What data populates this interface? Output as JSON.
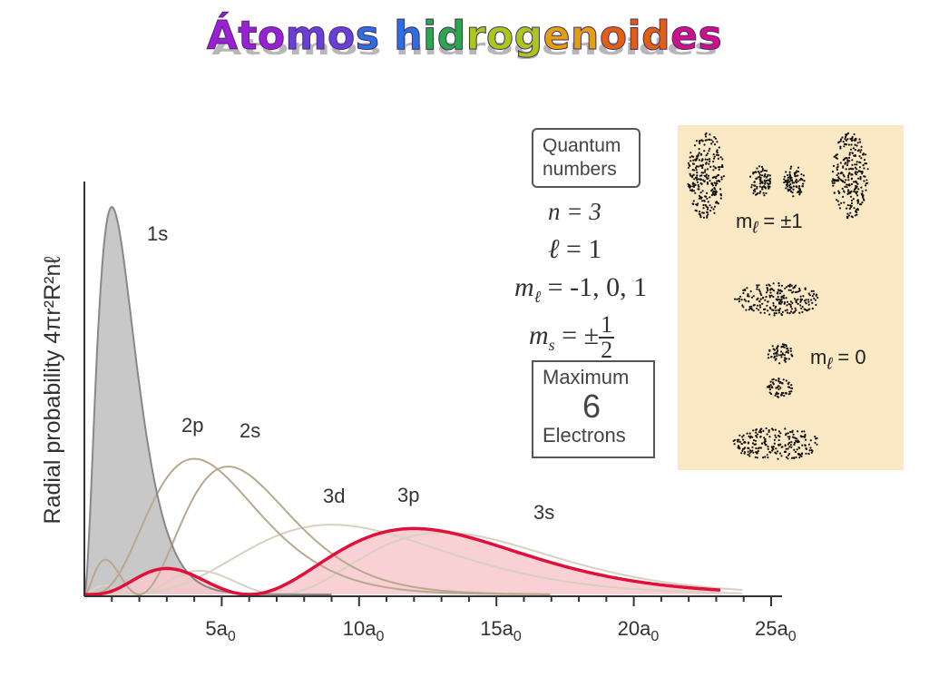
{
  "slide": {
    "title": "Átomos hidrogenoides"
  },
  "colors": {
    "title_gradient": [
      "#9b1fd6",
      "#6a3fd8",
      "#2e6fe0",
      "#2aa84a",
      "#a8c81a",
      "#e0a010",
      "#e06010",
      "#d0108a"
    ],
    "curve_red": "#e0103a",
    "fill_red": "#f8c8cc",
    "fill_gray": "#c8c8c8",
    "curve_gray": "#888888",
    "curve_tan": "#b8a890",
    "curve_light": "#d8d0c0",
    "panel_bg": "#fbe8c4"
  },
  "chart_data": {
    "type": "line",
    "title": "",
    "xlabel": "",
    "ylabel": "Radial probability 4πr²R²nℓ",
    "x_ticks": [
      "5a0",
      "10a0",
      "15a0",
      "20a0",
      "25a0"
    ],
    "x_tick_values": [
      5,
      10,
      15,
      20,
      25
    ],
    "xlim": [
      0,
      25
    ],
    "ylim": [
      0,
      1.0
    ],
    "series": [
      {
        "name": "1s",
        "label": "1s",
        "style": "gray-filled",
        "peak": 1.0,
        "peak_at": 1.0
      },
      {
        "name": "2p",
        "label": "2p",
        "style": "tan",
        "peak": 0.35,
        "peak_at": 4.0
      },
      {
        "name": "2s",
        "label": "2s",
        "style": "tan",
        "peak": 0.33,
        "peak_at": 5.2
      },
      {
        "name": "3d",
        "label": "3d",
        "style": "light",
        "peak": 0.18,
        "peak_at": 9.0
      },
      {
        "name": "3p",
        "label": "3p",
        "style": "red-filled",
        "peak": 0.17,
        "peak_at": 12.0
      },
      {
        "name": "3s",
        "label": "3s",
        "style": "light",
        "peak": 0.16,
        "peak_at": 13.0
      }
    ]
  },
  "quantum": {
    "box_line1": "Quantum",
    "box_line2": "numbers",
    "n_sym": "n",
    "n_val": "= 3",
    "l_sym": "ℓ",
    "l_val": "= 1",
    "ml_sym": "m",
    "ml_sub": "ℓ",
    "ml_val": "= -1, 0, 1",
    "ms_sym": "m",
    "ms_sub": "s",
    "ms_val": "= ±",
    "ms_num": "1",
    "ms_den": "2",
    "max_top": "Maximum",
    "max_num": "6",
    "max_bot": "Electrons"
  },
  "orbitals": {
    "label_pm1_sym": "m",
    "label_pm1_sub": "ℓ",
    "label_pm1_val": " = ±1",
    "label_0_sym": "m",
    "label_0_sub": "ℓ",
    "label_0_val": " = 0"
  }
}
